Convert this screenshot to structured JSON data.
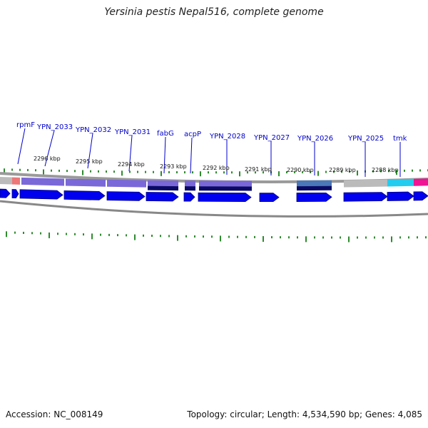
{
  "title": "Yersinia pestis Nepal516, complete genome",
  "footer": {
    "accession_label": "Accession:",
    "accession": "NC_008149",
    "topology_label": "Topology:",
    "topology": "circular",
    "length_label": "Length:",
    "length": "4,534,590 bp",
    "genes_label": "Genes:",
    "genes": "4,085"
  },
  "gene_labels": [
    "rpmF",
    "YPN_2033",
    "YPN_2032",
    "YPN_2031",
    "fabG",
    "acpP",
    "YPN_2028",
    "YPN_2027",
    "YPN_2026",
    "YPN_2025",
    "tmk"
  ],
  "kbp_labels": [
    "2296 kbp",
    "2295 kbp",
    "2294 kbp",
    "2293 kbp",
    "2292 kbp",
    "2291 kbp",
    "2290 kbp",
    "2289 kbp",
    "2288 kbp"
  ],
  "colors": {
    "gene_label": "#0000cc",
    "cds_arrow": "#0000ee",
    "cds_arrow_stroke": "#00007a",
    "tick": "#2e8b2e",
    "backbone": "#8c8c8c",
    "label_line": "#0000cc",
    "cog_purple": "#7b68d8",
    "cog_navy": "#0a0a66",
    "cog_gray": "#bbbbbb",
    "cog_salmon": "#ee7777",
    "cog_cyan": "#22ccee",
    "cog_magenta": "#ee1493",
    "cog_steelblue": "#4a78b8"
  }
}
